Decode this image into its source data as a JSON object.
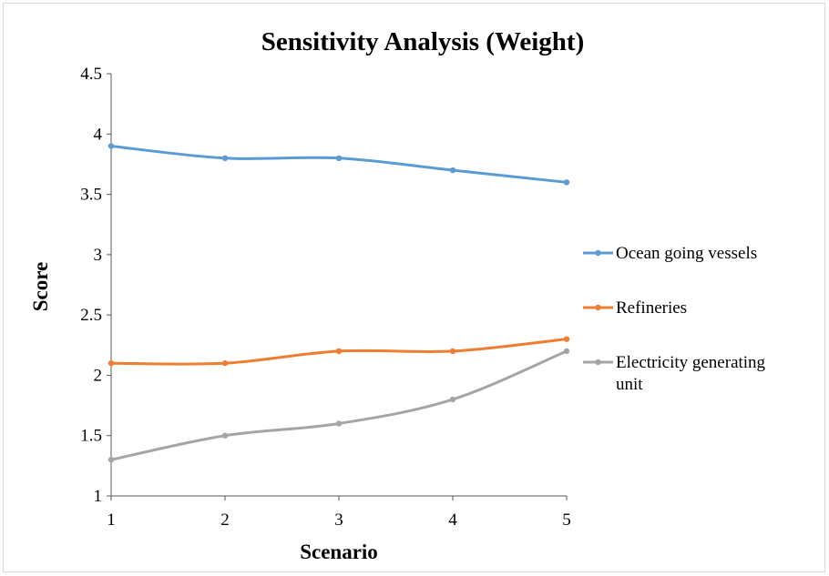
{
  "chart_data": {
    "type": "line",
    "title": "Sensitivity Analysis (Weight)",
    "xlabel": "Scenario",
    "ylabel": "Score",
    "categories": [
      "1",
      "2",
      "3",
      "4",
      "5"
    ],
    "x": [
      1,
      2,
      3,
      4,
      5
    ],
    "ylim": [
      1,
      4.5
    ],
    "yticks": [
      1,
      1.5,
      2,
      2.5,
      3,
      3.5,
      4,
      4.5
    ],
    "ytick_labels": [
      "1",
      "1.5",
      "2",
      "2.5",
      "3",
      "3.5",
      "4",
      "4.5"
    ],
    "grid": false,
    "smooth": true,
    "legend_position": "right",
    "series": [
      {
        "name": "Ocean going vessels",
        "color": "#5b9bd5",
        "values": [
          3.9,
          3.8,
          3.8,
          3.7,
          3.6
        ]
      },
      {
        "name": "Refineries",
        "color": "#ed7d31",
        "values": [
          2.1,
          2.1,
          2.2,
          2.2,
          2.3
        ]
      },
      {
        "name": "Electricity generating unit",
        "legend_lines": [
          "Electricity generating",
          "unit"
        ],
        "color": "#a5a5a5",
        "values": [
          1.3,
          1.5,
          1.6,
          1.8,
          2.2
        ]
      }
    ]
  }
}
